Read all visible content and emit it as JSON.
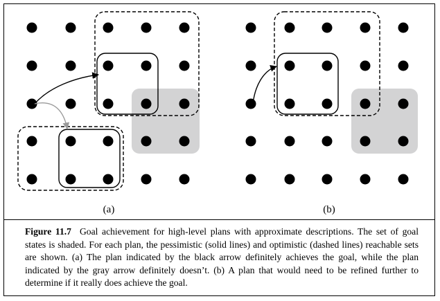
{
  "figure": {
    "panel_a_label": "(a)",
    "panel_b_label": "(b)",
    "colors": {
      "dot": "#000000",
      "goal_shade": "#d3d3d4",
      "black_arrow": "#000000",
      "gray_arrow": "#9a9a9a",
      "background": "#ffffff"
    }
  },
  "caption": {
    "label": "Figure 11.7",
    "text": "Goal achievement for high-level plans with approximate descriptions. The set of goal states is shaded. For each plan, the pessimistic (solid lines) and optimistic (dashed lines) reachable sets are shown. (a) The plan indicated by the black arrow definitely achieves the goal, while the plan indicated by the gray arrow definitely doesn’t. (b) A plan that would need to be refined further to determine if it really does achieve the goal."
  }
}
